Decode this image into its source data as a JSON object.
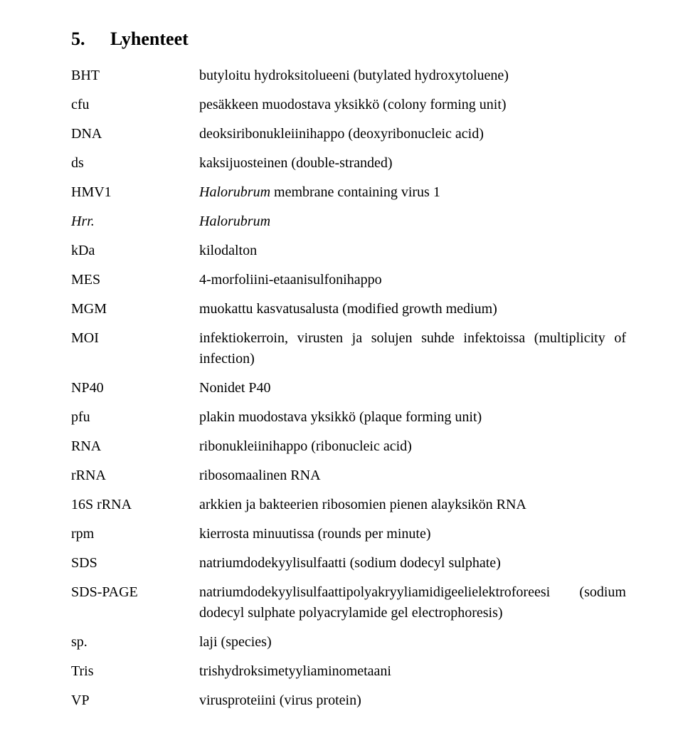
{
  "heading": {
    "number": "5.",
    "title": "Lyhenteet"
  },
  "entries": [
    {
      "abbr": "BHT",
      "abbr_italic": false,
      "defn_html": "butyloitu hydroksitolueeni (butylated hydroxytoluene)"
    },
    {
      "abbr": "cfu",
      "abbr_italic": false,
      "defn_html": "pesäkkeen muodostava yksikkö (colony forming unit)"
    },
    {
      "abbr": "DNA",
      "abbr_italic": false,
      "defn_html": "deoksiribonukleiinihappo (deoxyribonucleic acid)"
    },
    {
      "abbr": "ds",
      "abbr_italic": false,
      "defn_html": "kaksijuosteinen (double-stranded)"
    },
    {
      "abbr": "HMV1",
      "abbr_italic": false,
      "defn_html": "<span class=\"italic\">Halorubrum</span> membrane containing virus 1"
    },
    {
      "abbr": "Hrr.",
      "abbr_italic": true,
      "defn_html": "<span class=\"italic\">Halorubrum</span>"
    },
    {
      "abbr": "kDa",
      "abbr_italic": false,
      "defn_html": "kilodalton"
    },
    {
      "abbr": "MES",
      "abbr_italic": false,
      "defn_html": "4-morfoliini-etaanisulfonihappo"
    },
    {
      "abbr": "MGM",
      "abbr_italic": false,
      "defn_html": "muokattu kasvatusalusta (modified growth medium)"
    },
    {
      "abbr": "MOI",
      "abbr_italic": false,
      "defn_html": "infektiokerroin, virusten ja solujen suhde infektoissa (multiplicity of infection)"
    },
    {
      "abbr": "NP40",
      "abbr_italic": false,
      "defn_html": "Nonidet P40"
    },
    {
      "abbr": "pfu",
      "abbr_italic": false,
      "defn_html": "plakin muodostava yksikkö (plaque forming unit)"
    },
    {
      "abbr": "RNA",
      "abbr_italic": false,
      "defn_html": "ribonukleiinihappo (ribonucleic acid)"
    },
    {
      "abbr": "rRNA",
      "abbr_italic": false,
      "defn_html": "ribosomaalinen RNA"
    },
    {
      "abbr": "16S rRNA",
      "abbr_italic": false,
      "defn_html": "arkkien ja bakteerien ribosomien pienen alayksikön RNA"
    },
    {
      "abbr": "rpm",
      "abbr_italic": false,
      "defn_html": "kierrosta minuutissa (rounds per minute)"
    },
    {
      "abbr": "SDS",
      "abbr_italic": false,
      "defn_html": "natriumdodekyylisulfaatti (sodium dodecyl sulphate)"
    },
    {
      "abbr": "SDS-PAGE",
      "abbr_italic": false,
      "defn_html": "natriumdodekyylisulfaattipolyakryyliamidigeelielektroforeesi (sodium dodecyl sulphate polyacrylamide gel electrophoresis)"
    },
    {
      "abbr": "sp.",
      "abbr_italic": false,
      "defn_html": "laji (species)"
    },
    {
      "abbr": "Tris",
      "abbr_italic": false,
      "defn_html": "trishydroksimetyyliaminometaani"
    },
    {
      "abbr": "VP",
      "abbr_italic": false,
      "defn_html": "virusproteiini (virus protein)"
    }
  ]
}
